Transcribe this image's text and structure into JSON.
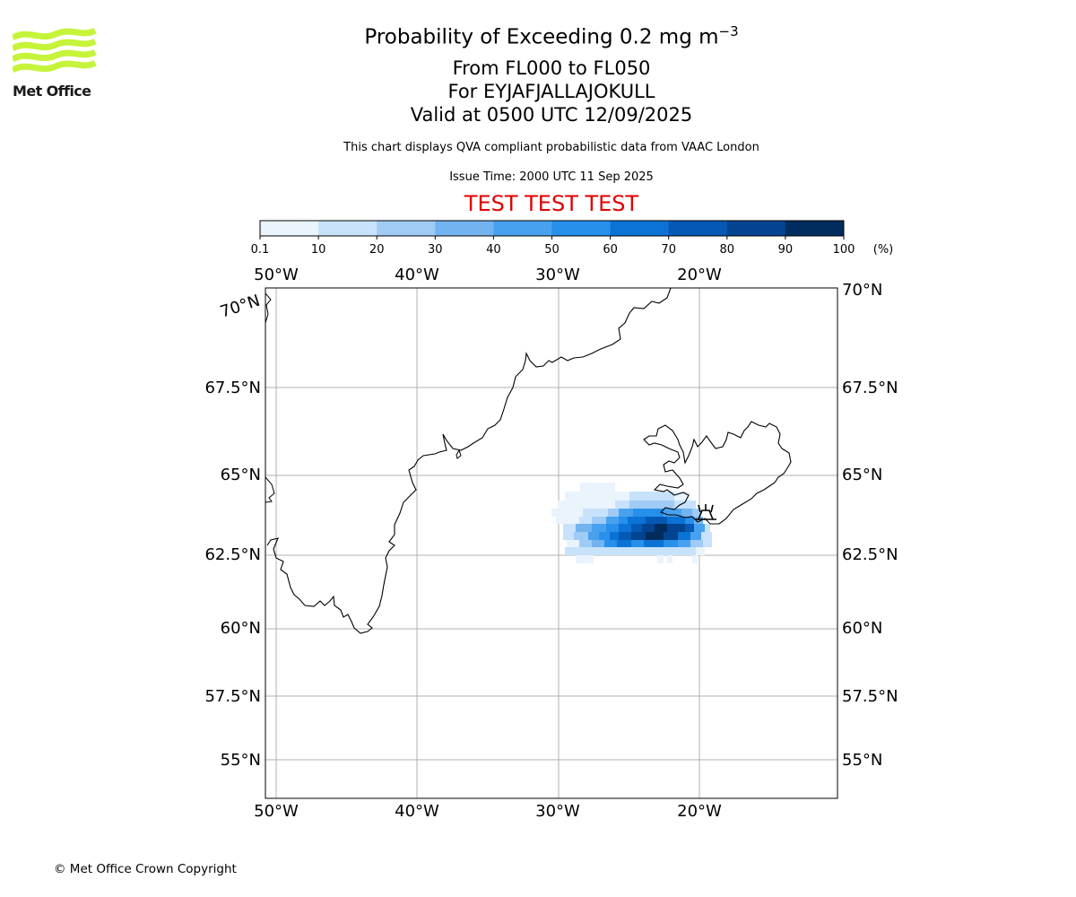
{
  "header": {
    "title_main": "Probability of Exceeding 0.2 mg m",
    "title_superscript": "−3",
    "level_range": "From FL000 to FL050",
    "volcano": "For EYJAFJALLAJOKULL",
    "valid_time": "Valid at 0500 UTC 12/09/2025",
    "description": "This chart displays QVA compliant probabilistic data from VAAC London",
    "issue_time": "Issue Time: 2000 UTC 11 Sep 2025",
    "test_banner": "TEST TEST TEST",
    "test_banner_color": "#e00000"
  },
  "logo": {
    "text": "Met Office",
    "wave_color": "#c6f43a"
  },
  "colorbar": {
    "ticks": [
      "0.1",
      "10",
      "20",
      "30",
      "40",
      "50",
      "60",
      "70",
      "80",
      "90",
      "100"
    ],
    "unit": "(%)",
    "colors": [
      "#eaf4fd",
      "#c7e2fa",
      "#9fcbf5",
      "#72b3f0",
      "#48a1ee",
      "#2690eb",
      "#0b72d6",
      "#0559b4",
      "#034490",
      "#012c5e"
    ]
  },
  "map": {
    "top_lon_labels": [
      "50°W",
      "40°W",
      "30°W",
      "20°W"
    ],
    "bottom_lon_labels": [
      "50°W",
      "40°W",
      "30°W",
      "20°W"
    ],
    "left_lat_labels": [
      "70°N",
      "67.5°N",
      "65°N",
      "62.5°N",
      "60°N",
      "57.5°N",
      "55°N"
    ],
    "right_lat_labels": [
      "70°N",
      "67.5°N",
      "65°N",
      "62.5°N",
      "60°N",
      "57.5°N",
      "55°N"
    ],
    "volcano_marker_icon": "volcano-icon",
    "gridline_color": "#b0b0b0"
  },
  "footer": {
    "copyright": "© Met Office Crown Copyright"
  }
}
